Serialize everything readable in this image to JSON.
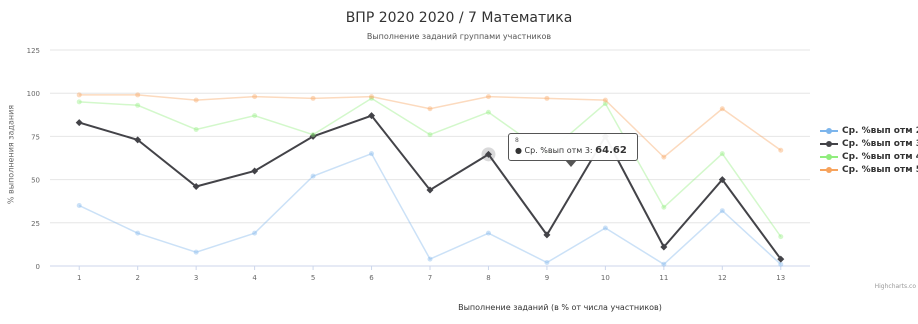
{
  "chart_data": {
    "type": "line",
    "title": "ВПР 2020 2020 / 7 Математика",
    "subtitle": "Выполнение заданий группами участников",
    "xlabel": "Выполнение заданий (в % от числа участников)",
    "ylabel": "% выполнения задания",
    "categories": [
      "1",
      "2",
      "3",
      "4",
      "5",
      "6",
      "7",
      "8",
      "9",
      "10",
      "11",
      "12",
      "13"
    ],
    "ylim": [
      0,
      125
    ],
    "yticks": [
      0,
      25,
      50,
      75,
      100,
      125
    ],
    "grid": true,
    "legend_position": "right",
    "series": [
      {
        "name": "Ср. %вып отм 2",
        "color": "#7cb5ec",
        "opacity": 0.4,
        "values": [
          35,
          19,
          8,
          19,
          52,
          65,
          4,
          19,
          2,
          22,
          1,
          32,
          1
        ]
      },
      {
        "name": "Ср. %вып отм 3",
        "color": "#434348",
        "opacity": 1,
        "values": [
          83,
          73,
          46,
          55,
          75,
          87,
          44,
          64.62,
          18,
          75,
          11,
          50,
          4
        ]
      },
      {
        "name": "Ср. %вып отм 4",
        "color": "#90ed7d",
        "opacity": 0.4,
        "values": [
          95,
          93,
          79,
          87,
          76,
          97,
          76,
          89,
          65,
          94,
          34,
          65,
          17
        ]
      },
      {
        "name": "Ср. %вып отм 5",
        "color": "#f7a35c",
        "opacity": 0.4,
        "values": [
          99,
          99,
          96,
          98,
          97,
          98,
          91,
          98,
          97,
          96,
          63,
          91,
          67
        ]
      }
    ],
    "tooltip": {
      "x": "8",
      "series": "Ср. %вып отм 3",
      "label": "Ср. %вып отм 3:",
      "value": "64.62"
    }
  },
  "credits": "Highcharts.co"
}
